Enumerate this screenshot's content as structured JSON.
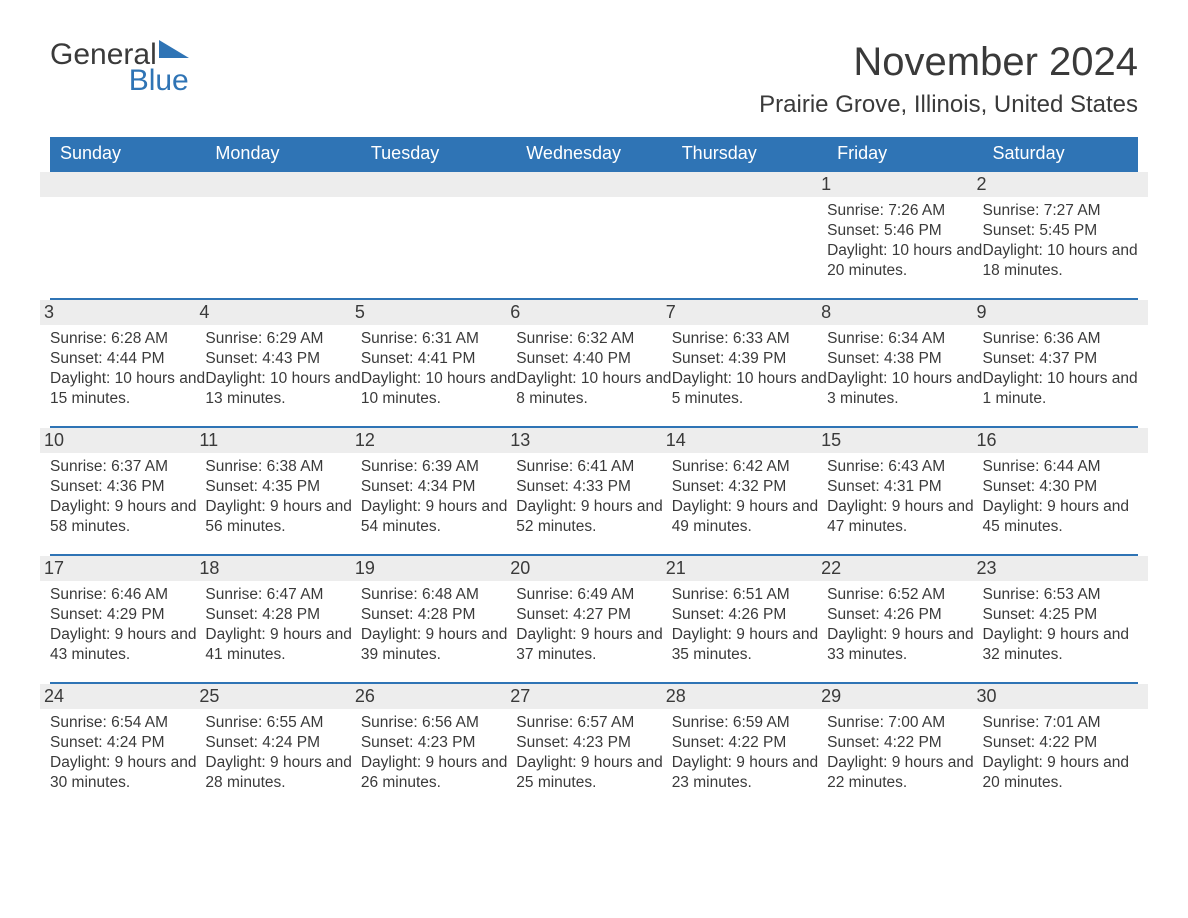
{
  "logo": {
    "text1": "General",
    "text2": "Blue",
    "shape_color": "#2f74b5"
  },
  "title": "November 2024",
  "location": "Prairie Grove, Illinois, United States",
  "colors": {
    "header_bg": "#2f74b5",
    "header_text": "#ffffff",
    "daynum_bg": "#ededed",
    "row_border": "#2f74b5",
    "body_text": "#3a3a3a",
    "page_bg": "#ffffff"
  },
  "day_headers": [
    "Sunday",
    "Monday",
    "Tuesday",
    "Wednesday",
    "Thursday",
    "Friday",
    "Saturday"
  ],
  "weeks": [
    [
      null,
      null,
      null,
      null,
      null,
      {
        "n": "1",
        "sunrise": "7:26 AM",
        "sunset": "5:46 PM",
        "daylight": "10 hours and 20 minutes."
      },
      {
        "n": "2",
        "sunrise": "7:27 AM",
        "sunset": "5:45 PM",
        "daylight": "10 hours and 18 minutes."
      }
    ],
    [
      {
        "n": "3",
        "sunrise": "6:28 AM",
        "sunset": "4:44 PM",
        "daylight": "10 hours and 15 minutes."
      },
      {
        "n": "4",
        "sunrise": "6:29 AM",
        "sunset": "4:43 PM",
        "daylight": "10 hours and 13 minutes."
      },
      {
        "n": "5",
        "sunrise": "6:31 AM",
        "sunset": "4:41 PM",
        "daylight": "10 hours and 10 minutes."
      },
      {
        "n": "6",
        "sunrise": "6:32 AM",
        "sunset": "4:40 PM",
        "daylight": "10 hours and 8 minutes."
      },
      {
        "n": "7",
        "sunrise": "6:33 AM",
        "sunset": "4:39 PM",
        "daylight": "10 hours and 5 minutes."
      },
      {
        "n": "8",
        "sunrise": "6:34 AM",
        "sunset": "4:38 PM",
        "daylight": "10 hours and 3 minutes."
      },
      {
        "n": "9",
        "sunrise": "6:36 AM",
        "sunset": "4:37 PM",
        "daylight": "10 hours and 1 minute."
      }
    ],
    [
      {
        "n": "10",
        "sunrise": "6:37 AM",
        "sunset": "4:36 PM",
        "daylight": "9 hours and 58 minutes."
      },
      {
        "n": "11",
        "sunrise": "6:38 AM",
        "sunset": "4:35 PM",
        "daylight": "9 hours and 56 minutes."
      },
      {
        "n": "12",
        "sunrise": "6:39 AM",
        "sunset": "4:34 PM",
        "daylight": "9 hours and 54 minutes."
      },
      {
        "n": "13",
        "sunrise": "6:41 AM",
        "sunset": "4:33 PM",
        "daylight": "9 hours and 52 minutes."
      },
      {
        "n": "14",
        "sunrise": "6:42 AM",
        "sunset": "4:32 PM",
        "daylight": "9 hours and 49 minutes."
      },
      {
        "n": "15",
        "sunrise": "6:43 AM",
        "sunset": "4:31 PM",
        "daylight": "9 hours and 47 minutes."
      },
      {
        "n": "16",
        "sunrise": "6:44 AM",
        "sunset": "4:30 PM",
        "daylight": "9 hours and 45 minutes."
      }
    ],
    [
      {
        "n": "17",
        "sunrise": "6:46 AM",
        "sunset": "4:29 PM",
        "daylight": "9 hours and 43 minutes."
      },
      {
        "n": "18",
        "sunrise": "6:47 AM",
        "sunset": "4:28 PM",
        "daylight": "9 hours and 41 minutes."
      },
      {
        "n": "19",
        "sunrise": "6:48 AM",
        "sunset": "4:28 PM",
        "daylight": "9 hours and 39 minutes."
      },
      {
        "n": "20",
        "sunrise": "6:49 AM",
        "sunset": "4:27 PM",
        "daylight": "9 hours and 37 minutes."
      },
      {
        "n": "21",
        "sunrise": "6:51 AM",
        "sunset": "4:26 PM",
        "daylight": "9 hours and 35 minutes."
      },
      {
        "n": "22",
        "sunrise": "6:52 AM",
        "sunset": "4:26 PM",
        "daylight": "9 hours and 33 minutes."
      },
      {
        "n": "23",
        "sunrise": "6:53 AM",
        "sunset": "4:25 PM",
        "daylight": "9 hours and 32 minutes."
      }
    ],
    [
      {
        "n": "24",
        "sunrise": "6:54 AM",
        "sunset": "4:24 PM",
        "daylight": "9 hours and 30 minutes."
      },
      {
        "n": "25",
        "sunrise": "6:55 AM",
        "sunset": "4:24 PM",
        "daylight": "9 hours and 28 minutes."
      },
      {
        "n": "26",
        "sunrise": "6:56 AM",
        "sunset": "4:23 PM",
        "daylight": "9 hours and 26 minutes."
      },
      {
        "n": "27",
        "sunrise": "6:57 AM",
        "sunset": "4:23 PM",
        "daylight": "9 hours and 25 minutes."
      },
      {
        "n": "28",
        "sunrise": "6:59 AM",
        "sunset": "4:22 PM",
        "daylight": "9 hours and 23 minutes."
      },
      {
        "n": "29",
        "sunrise": "7:00 AM",
        "sunset": "4:22 PM",
        "daylight": "9 hours and 22 minutes."
      },
      {
        "n": "30",
        "sunrise": "7:01 AM",
        "sunset": "4:22 PM",
        "daylight": "9 hours and 20 minutes."
      }
    ]
  ],
  "labels": {
    "sunrise": "Sunrise: ",
    "sunset": "Sunset: ",
    "daylight": "Daylight: "
  }
}
